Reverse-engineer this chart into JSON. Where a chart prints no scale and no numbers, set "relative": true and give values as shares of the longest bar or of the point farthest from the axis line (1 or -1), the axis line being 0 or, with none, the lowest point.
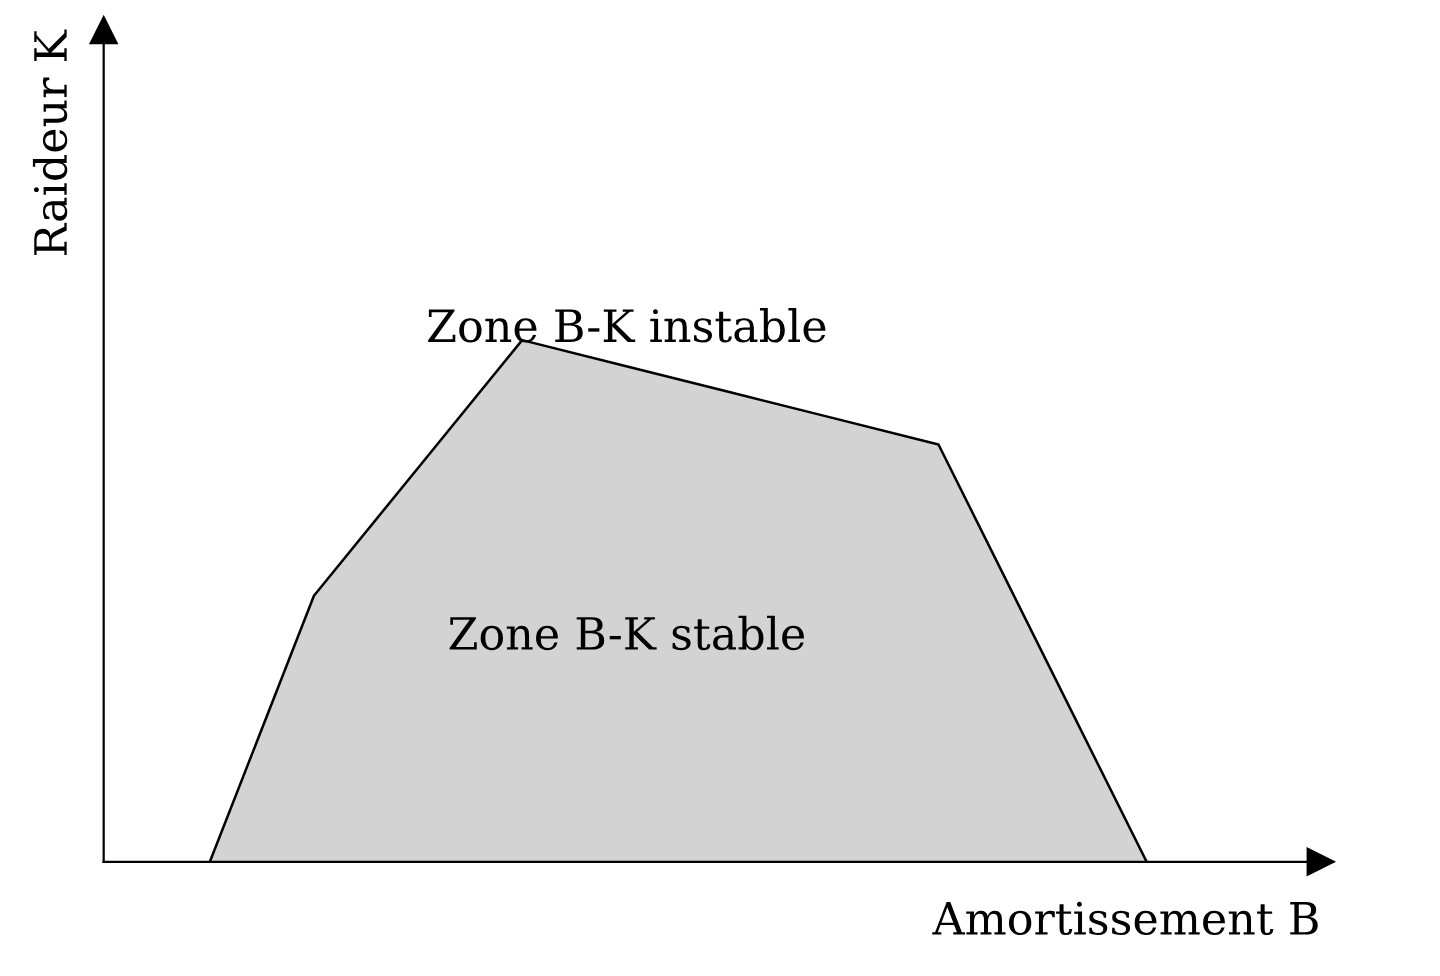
{
  "chart_data": {
    "type": "area",
    "relative": true,
    "tick_labels": false,
    "xlabel": "Amortissement B",
    "ylabel": "Raideur K",
    "categories": [
      null,
      null,
      null,
      null,
      null,
      null,
      null,
      null,
      null,
      null
    ],
    "series": [
      {
        "color": "#d3d3d3",
        "values": [
          0,
          0.51,
          0.755,
          1,
          0.95,
          0.9,
          0.85,
          0.8,
          0.4,
          0
        ]
      }
    ],
    "annotations": [
      "Zone B-K instable",
      "Zone B-K stable"
    ]
  }
}
